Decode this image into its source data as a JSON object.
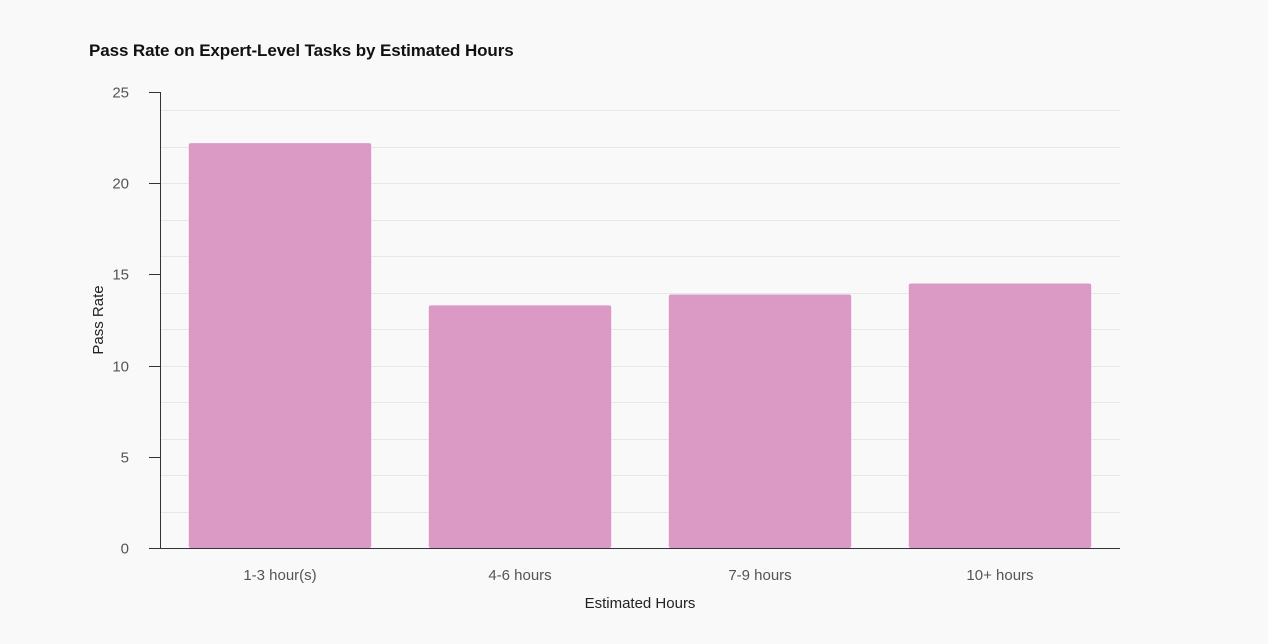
{
  "chart_data": {
    "type": "bar",
    "title": "Pass Rate on Expert-Level Tasks by Estimated Hours",
    "xlabel": "Estimated Hours",
    "ylabel": "Pass Rate",
    "categories": [
      "1-3 hour(s)",
      "4-6 hours",
      "7-9 hours",
      "10+ hours"
    ],
    "values": [
      22.2,
      13.3,
      13.9,
      14.5
    ],
    "ylim": [
      0,
      25
    ],
    "yticks": [
      0,
      5,
      10,
      15,
      20,
      25
    ],
    "ytick_labels": [
      "0",
      "5",
      "10",
      "15",
      "20",
      "25"
    ],
    "grid": true,
    "bar_color": "#db99c5",
    "grid_color": "#e8e8e8",
    "axis_color": "#333333"
  }
}
